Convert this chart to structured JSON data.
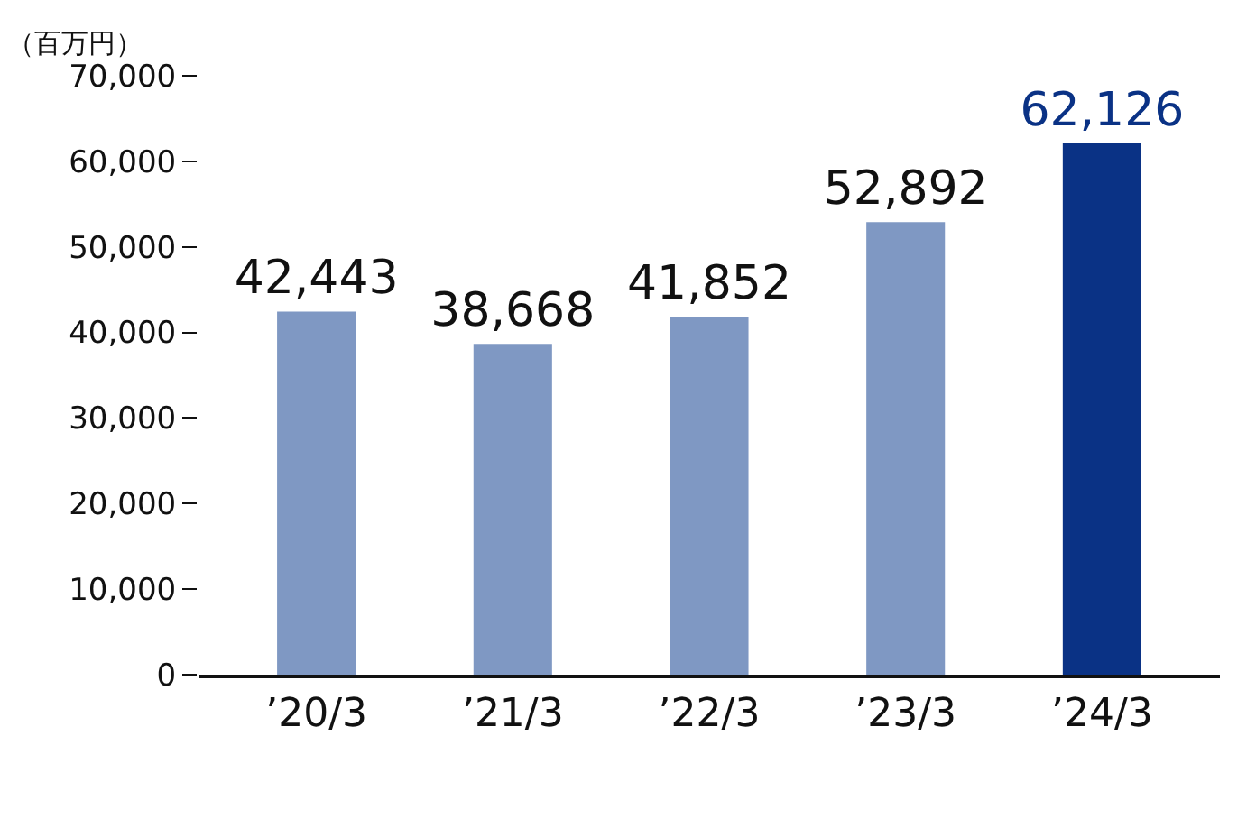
{
  "chart_data": {
    "type": "bar",
    "ylabel": "（百万円）",
    "categories": [
      "’20/3",
      "’21/3",
      "’22/3",
      "’23/3",
      "’24/3"
    ],
    "values": [
      42443,
      38668,
      41852,
      52892,
      62126
    ],
    "colors": [
      "#7f98c3",
      "#7f98c3",
      "#7f98c3",
      "#7f98c3",
      "#0a3285"
    ],
    "ylim": [
      0,
      70000
    ],
    "yticks": [
      {
        "value": 0,
        "label": "0"
      },
      {
        "value": 10000,
        "label": "10,000"
      },
      {
        "value": 20000,
        "label": "20,000"
      },
      {
        "value": 30000,
        "label": "30,000"
      },
      {
        "value": 40000,
        "label": "40,000"
      },
      {
        "value": 50000,
        "label": "50,000"
      },
      {
        "value": 60000,
        "label": "60,000"
      },
      {
        "value": 70000,
        "label": "70,000"
      }
    ],
    "value_labels": [
      "42,443",
      "38,668",
      "41,852",
      "52,892",
      "62,126"
    ]
  }
}
